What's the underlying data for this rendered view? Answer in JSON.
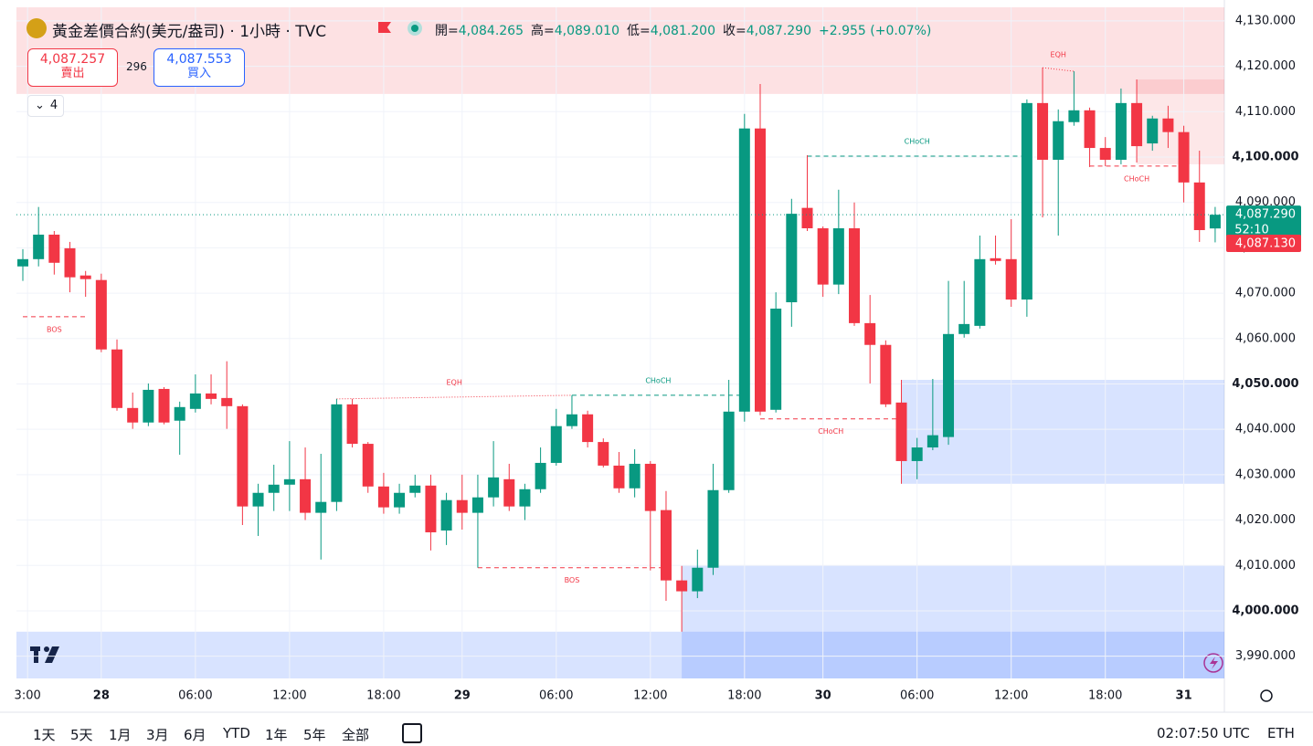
{
  "header": {
    "title": "黃金差價合約(美元/盎司) · 1小時 · TVC",
    "ohlc": [
      {
        "label": "開=",
        "value": "4,084.265"
      },
      {
        "label": "高=",
        "value": "4,089.010"
      },
      {
        "label": "低=",
        "value": "4,081.200"
      },
      {
        "label": "收=",
        "value": "4,087.290"
      }
    ],
    "change": "+2.955 (+0.07%)",
    "sell": {
      "price": "4,087.257",
      "label": "賣出"
    },
    "spread": "296",
    "buy": {
      "price": "4,087.553",
      "label": "買入"
    },
    "indicators": "4"
  },
  "chart_data": {
    "type": "candlestick",
    "open": [
      4075.9,
      4077.5,
      4082.9,
      4079.9,
      4073.9,
      4072.9,
      4057.6,
      4044.7,
      4041.5,
      4048.9,
      4041.9,
      4044.5,
      4047.9,
      4046.9,
      4045.1,
      4023.0,
      4026.0,
      4027.8,
      4029.0,
      4021.6,
      4024.0,
      4045.5,
      4036.8,
      4027.4,
      4022.8,
      4026.0,
      4027.6,
      4017.7,
      4024.4,
      4021.6,
      4025.0,
      4029.0,
      4023.0,
      4026.8,
      4032.6,
      4040.7,
      4043.3,
      4037.2,
      4032.0,
      4027.0,
      4032.4,
      4022.2,
      4006.7,
      4004.3,
      4009.5,
      4026.6,
      4043.9,
      4106.3,
      4044.3,
      4068.0,
      4088.8,
      4084.3,
      4071.9,
      4084.3,
      4063.4,
      4058.6,
      4045.9,
      4033.0,
      4036.0,
      4038.3,
      4061.0,
      4062.8,
      4077.7,
      4077.5,
      4068.6,
      4111.9,
      4099.4,
      4107.7,
      4110.3,
      4102.0,
      4099.4,
      4111.9,
      4103.0,
      4108.5,
      4105.5,
      4094.4,
      4084.265
    ],
    "high": [
      4079.7,
      4089.0,
      4083.7,
      4081.3,
      4074.9,
      4074.3,
      4059.8,
      4048.1,
      4050.1,
      4049.3,
      4046.1,
      4052.1,
      4052.1,
      4055.0,
      4045.5,
      4028.0,
      4032.2,
      4037.4,
      4036.0,
      4034.6,
      4046.7,
      4046.7,
      4037.2,
      4030.4,
      4028.0,
      4030.0,
      4030.0,
      4026.0,
      4030.0,
      4030.0,
      4037.4,
      4032.4,
      4028.0,
      4036.0,
      4044.5,
      4047.5,
      4044.1,
      4038.0,
      4035.0,
      4035.6,
      4033.0,
      4026.4,
      4009.9,
      4013.5,
      4032.4,
      4050.9,
      4109.5,
      4116.1,
      4070.2,
      4090.8,
      4100.4,
      4084.7,
      4092.8,
      4090.0,
      4069.6,
      4059.6,
      4050.9,
      4038.1,
      4051.1,
      4072.7,
      4072.7,
      4082.7,
      4082.7,
      4086.3,
      4112.7,
      4119.7,
      4110.5,
      4118.9,
      4110.9,
      4104.4,
      4115.1,
      4117.1,
      4109.1,
      4111.3,
      4106.9,
      4101.4,
      4089.01
    ],
    "low": [
      4072.7,
      4075.9,
      4074.1,
      4070.2,
      4069.2,
      4057.0,
      4044.1,
      4040.1,
      4040.7,
      4041.1,
      4034.4,
      4043.7,
      4045.5,
      4040.1,
      4018.9,
      4016.5,
      4022.0,
      4022.0,
      4020.0,
      4011.3,
      4022.0,
      4036.0,
      4026.0,
      4021.4,
      4021.4,
      4025.0,
      4013.3,
      4014.5,
      4017.9,
      4009.5,
      4023.0,
      4022.0,
      4020.0,
      4026.0,
      4032.0,
      4040.1,
      4036.0,
      4031.6,
      4026.0,
      4025.0,
      4008.9,
      4002.2,
      3995.4,
      4002.8,
      4007.9,
      4026.0,
      4041.7,
      4043.1,
      4043.7,
      4062.6,
      4083.7,
      4069.2,
      4069.8,
      4062.8,
      4050.1,
      4044.9,
      4028.0,
      4029.0,
      4035.4,
      4036.6,
      4060.2,
      4062.2,
      4076.3,
      4067.0,
      4064.8,
      4086.7,
      4082.7,
      4106.9,
      4097.8,
      4098.0,
      4098.4,
      4098.8,
      4101.4,
      4102.0,
      4090.0,
      4081.3,
      4081.2
    ],
    "close": [
      4077.5,
      4082.9,
      4076.7,
      4073.5,
      4073.1,
      4057.6,
      4044.7,
      4041.5,
      4048.7,
      4041.5,
      4044.9,
      4047.9,
      4046.7,
      4045.1,
      4023.0,
      4026.0,
      4027.8,
      4029.0,
      4021.6,
      4024.0,
      4045.5,
      4036.8,
      4027.4,
      4022.8,
      4026.0,
      4027.6,
      4017.3,
      4024.4,
      4021.6,
      4025.0,
      4029.4,
      4023.0,
      4026.8,
      4032.6,
      4040.7,
      4043.3,
      4037.2,
      4032.0,
      4027.0,
      4032.4,
      4022.0,
      4006.7,
      4004.3,
      4009.5,
      4026.6,
      4043.9,
      4106.3,
      4043.9,
      4066.6,
      4087.5,
      4084.3,
      4071.9,
      4084.3,
      4063.4,
      4058.6,
      4045.5,
      4033.0,
      4036.0,
      4038.7,
      4061.0,
      4063.2,
      4077.5,
      4077.1,
      4068.6,
      4111.9,
      4099.4,
      4107.9,
      4110.3,
      4102.0,
      4099.4,
      4111.9,
      4102.4,
      4108.5,
      4105.5,
      4094.4,
      4083.9,
      4087.29
    ],
    "up_color": "#089981",
    "down_color": "#f23645",
    "ylim": [
      3985.1,
      4133.0
    ],
    "yticks": [
      {
        "value": 3990,
        "label": "3,990.000"
      },
      {
        "value": 4000,
        "label": "4,000.000"
      },
      {
        "value": 4010,
        "label": "4,010.000"
      },
      {
        "value": 4020,
        "label": "4,020.000"
      },
      {
        "value": 4030,
        "label": "4,030.000"
      },
      {
        "value": 4040,
        "label": "4,040.000"
      },
      {
        "value": 4050,
        "label": "4,050.000"
      },
      {
        "value": 4060,
        "label": "4,060.000"
      },
      {
        "value": 4070,
        "label": "4,070.000"
      },
      {
        "value": 4080,
        "label": "4,080.000"
      },
      {
        "value": 4090,
        "label": "4,090.000"
      },
      {
        "value": 4100,
        "label": "4,100.000"
      },
      {
        "value": 4110,
        "label": "4,110.000"
      },
      {
        "value": 4120,
        "label": "4,120.000"
      },
      {
        "value": 4130,
        "label": "4,130.000"
      }
    ],
    "xticks": [
      {
        "value": 0.3,
        "label": "3:00"
      },
      {
        "value": 5,
        "label": "28"
      },
      {
        "value": 11,
        "label": "06:00"
      },
      {
        "value": 17,
        "label": "12:00"
      },
      {
        "value": 23,
        "label": "18:00"
      },
      {
        "value": 28,
        "label": "29"
      },
      {
        "value": 34,
        "label": "06:00"
      },
      {
        "value": 40,
        "label": "12:00"
      },
      {
        "value": 46,
        "label": "18:00"
      },
      {
        "value": 51,
        "label": "30"
      },
      {
        "value": 57,
        "label": "06:00"
      },
      {
        "value": 63,
        "label": "12:00"
      },
      {
        "value": 69,
        "label": "18:00"
      },
      {
        "value": 74,
        "label": "31"
      }
    ],
    "grid": true,
    "last_price_label": "4,087.290",
    "countdown": "52:10",
    "bid": {
      "value": 4087.13,
      "label": "4,087.130"
    },
    "zones": [
      {
        "start": 0,
        "range": [
          4113.9,
          4133.0
        ],
        "color": "rgba(242,54,69,0.15)"
      },
      {
        "start": 71,
        "range": [
          4098.4,
          4117.1
        ],
        "color": "rgba(242,54,69,0.12)"
      },
      {
        "start": 56,
        "range": [
          4028.0,
          4050.9
        ],
        "color": "rgba(41,98,255,0.18)"
      },
      {
        "start": 42,
        "range": [
          3985.1,
          4010.0
        ],
        "color": "rgba(41,98,255,0.18)"
      },
      {
        "start": 0,
        "range": [
          3985.1,
          3995.4
        ],
        "color": "rgba(41,98,255,0.18)"
      }
    ],
    "annotations": [
      {
        "label": "BOS",
        "from": 0,
        "to": 4,
        "price": 4064.8,
        "style": "dashed",
        "color": "#f23645",
        "position": "below"
      },
      {
        "label": "EQH",
        "from": 20,
        "to": 35,
        "prices": [
          4046.7,
          4047.5
        ],
        "style": "dotted",
        "color": "#f23645",
        "position": "above"
      },
      {
        "label": "CHoCH",
        "from": 35,
        "to": 46,
        "price": 4047.5,
        "style": "dashed",
        "color": "#089981",
        "position": "above"
      },
      {
        "label": "BOS",
        "from": 29,
        "to": 41,
        "price": 4009.5,
        "style": "dashed",
        "color": "#f23645",
        "position": "below"
      },
      {
        "label": "CHoCH",
        "from": 50,
        "to": 64,
        "price": 4100.2,
        "style": "dashed",
        "color": "#089981",
        "position": "above"
      },
      {
        "label": "CHoCH",
        "from": 47,
        "to": 56,
        "price": 4042.3,
        "style": "dashed",
        "color": "#f23645",
        "position": "below"
      },
      {
        "label": "EQH",
        "from": 65,
        "to": 67,
        "prices": [
          4119.7,
          4118.9
        ],
        "style": "dotted",
        "color": "#f23645",
        "position": "above"
      },
      {
        "label": "CHoCH",
        "from": 68,
        "to": 74,
        "price": 4098.0,
        "style": "dashed",
        "color": "#f23645",
        "position": "below"
      }
    ]
  },
  "toolbar": {
    "ranges": [
      "1天",
      "5天",
      "1月",
      "3月",
      "6月",
      "YTD",
      "1年",
      "5年",
      "全部"
    ],
    "clock": "02:07:50 UTC",
    "session": "ETH"
  }
}
